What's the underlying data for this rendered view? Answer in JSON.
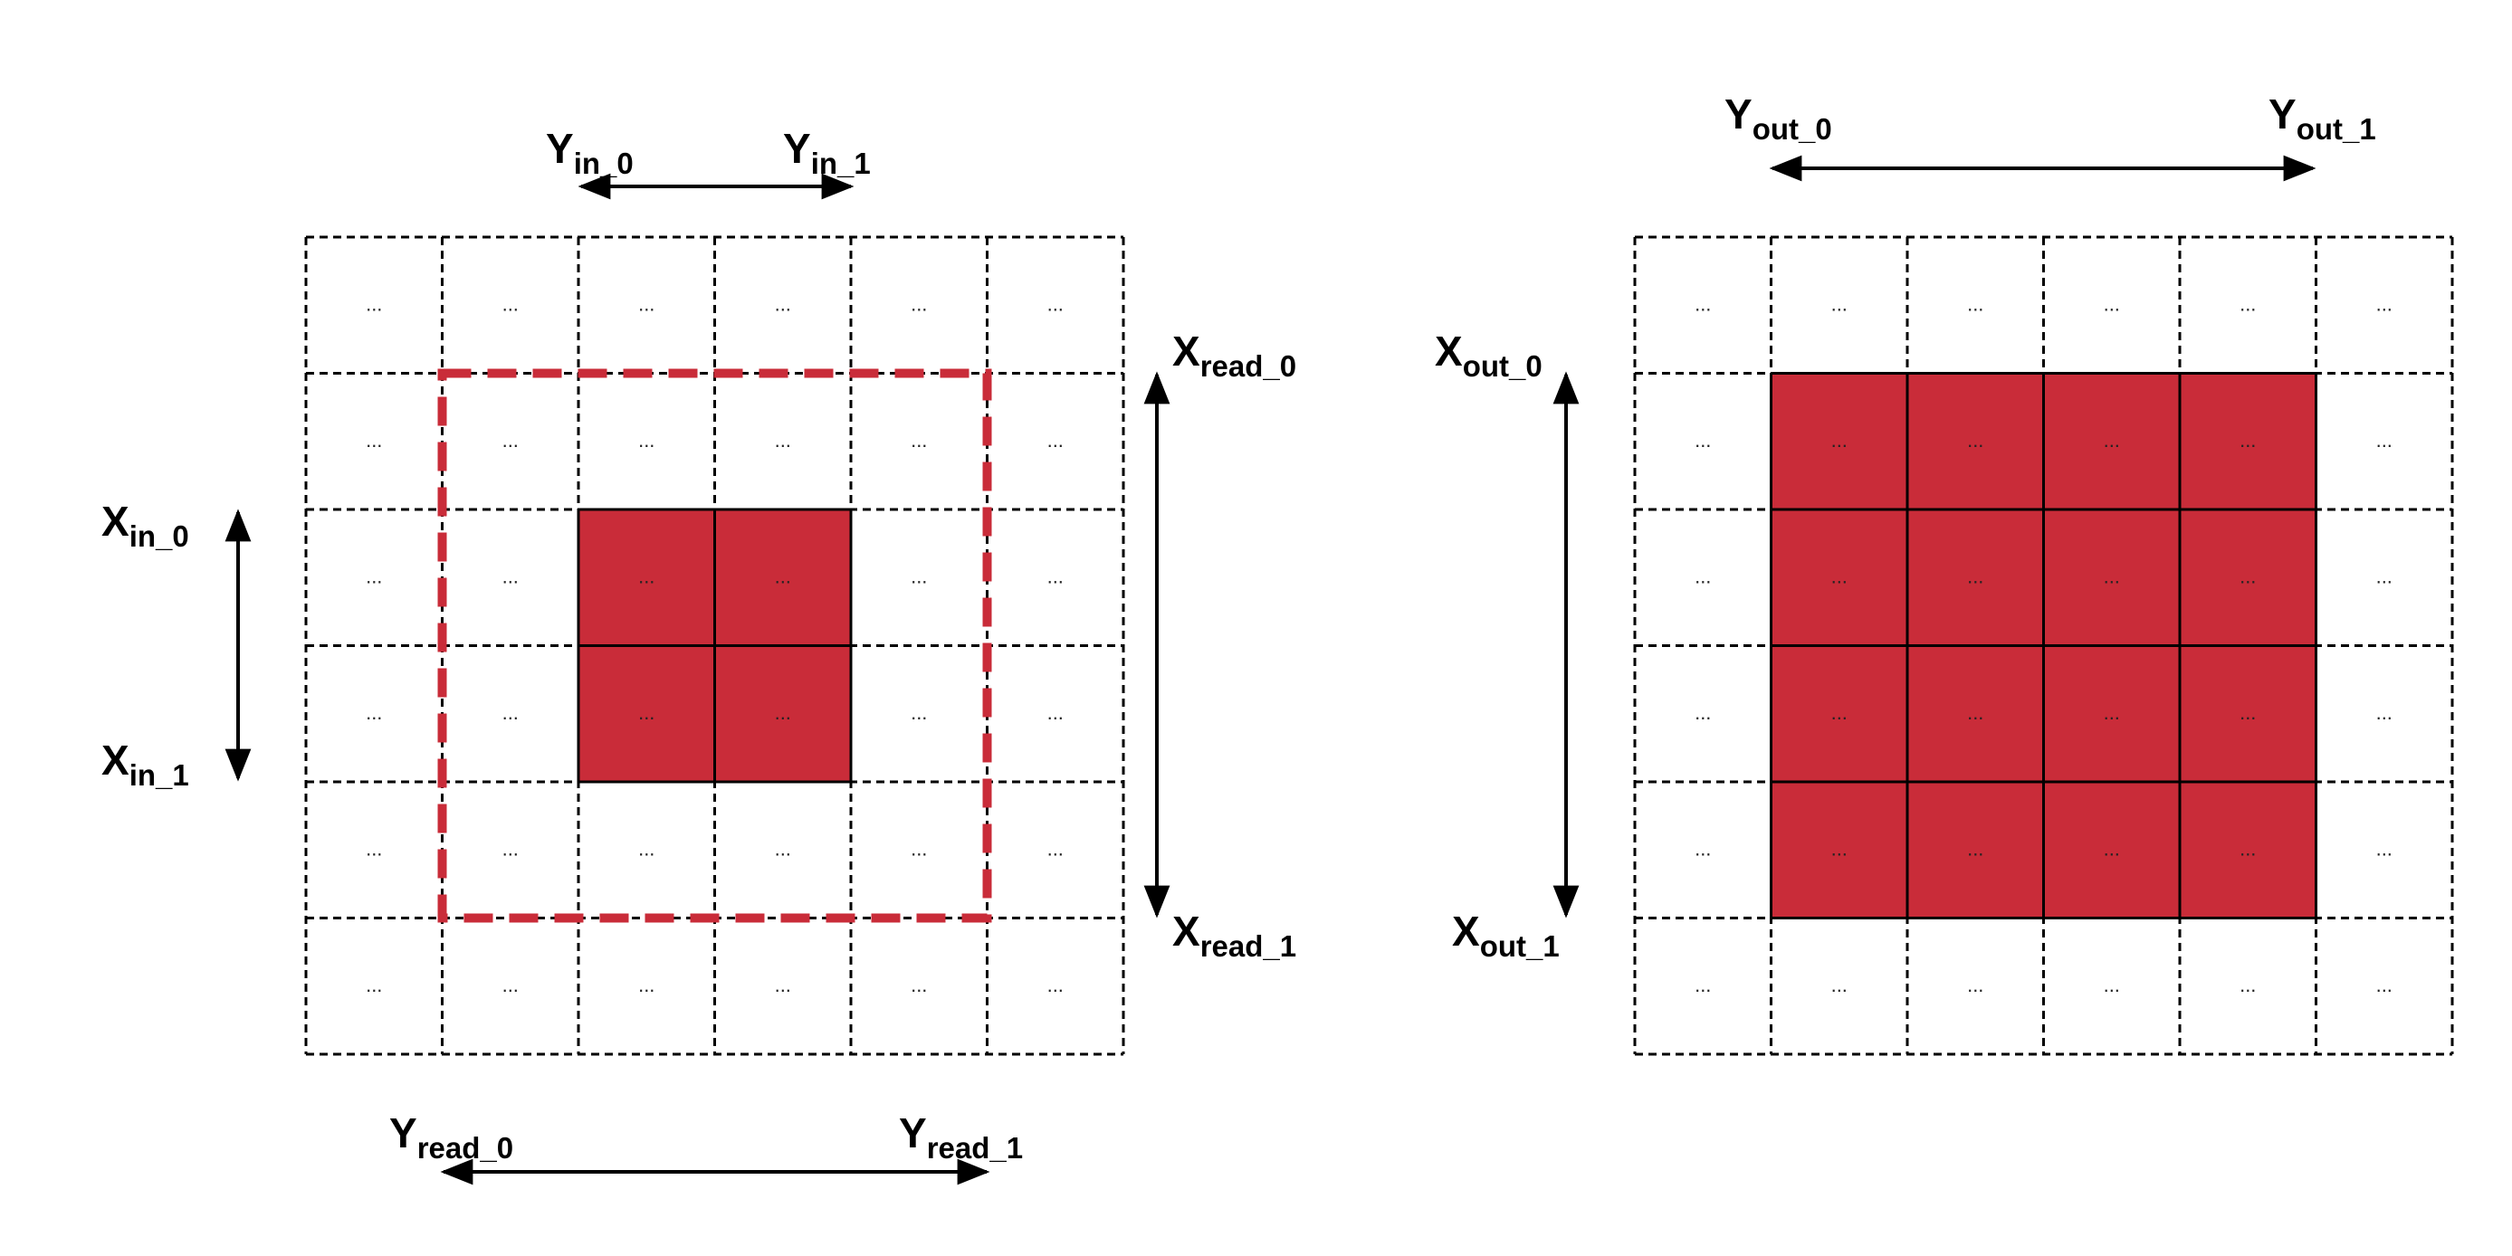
{
  "colors": {
    "highlight": "#c92c39",
    "grid_line": "#000000",
    "read_box": "#c92c39",
    "background": "#ffffff"
  },
  "cell_placeholder": "...",
  "left_grid": {
    "rows": 6,
    "cols": 6,
    "highlight_rows": [
      2,
      3
    ],
    "highlight_cols": [
      2,
      3
    ],
    "read_box_rows": [
      1,
      4
    ],
    "read_box_cols": [
      1,
      4
    ]
  },
  "right_grid": {
    "rows": 6,
    "cols": 6,
    "highlight_rows": [
      1,
      4
    ],
    "highlight_cols": [
      1,
      4
    ]
  },
  "labels": {
    "y_in_0": {
      "base": "Y",
      "sub": "in_0"
    },
    "y_in_1": {
      "base": "Y",
      "sub": "in_1"
    },
    "x_in_0": {
      "base": "X",
      "sub": "in_0"
    },
    "x_in_1": {
      "base": "X",
      "sub": "in_1"
    },
    "x_read_0": {
      "base": "X",
      "sub": "read_0"
    },
    "x_read_1": {
      "base": "X",
      "sub": "read_1"
    },
    "y_read_0": {
      "base": "Y",
      "sub": "read_0"
    },
    "y_read_1": {
      "base": "Y",
      "sub": "read_1"
    },
    "y_out_0": {
      "base": "Y",
      "sub": "out_0"
    },
    "y_out_1": {
      "base": "Y",
      "sub": "out_1"
    },
    "x_out_0": {
      "base": "X",
      "sub": "out_0"
    },
    "x_out_1": {
      "base": "X",
      "sub": "out_1"
    }
  }
}
